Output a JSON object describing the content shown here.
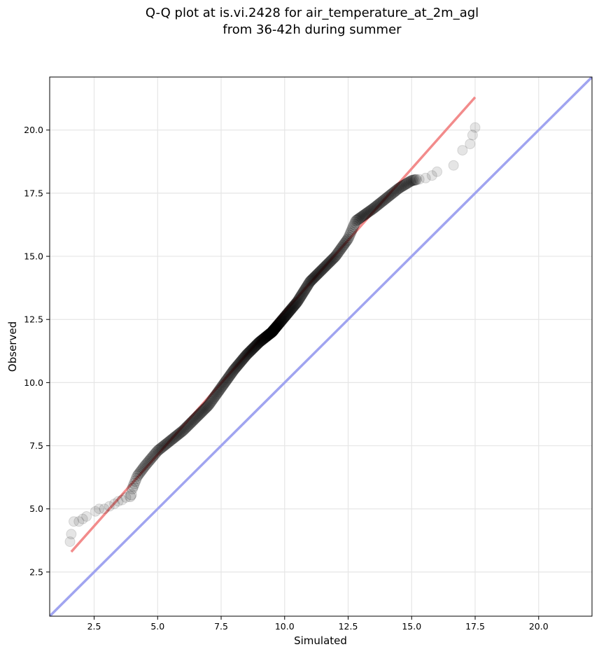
{
  "chart_data": {
    "type": "scatter",
    "title_line1": "Q-Q plot at is.vi.2428 for air_temperature_at_2m_agl",
    "title_line2": "from 36-42h during summer",
    "xlabel": "Simulated",
    "ylabel": "Observed",
    "xlim": [
      0.75,
      22.1
    ],
    "ylim": [
      0.75,
      22.1
    ],
    "x_ticks": [
      2.5,
      5.0,
      7.5,
      10.0,
      12.5,
      15.0,
      17.5,
      20.0
    ],
    "x_tick_labels": [
      "2.5",
      "5.0",
      "7.5",
      "10.0",
      "12.5",
      "15.0",
      "17.5",
      "20.0"
    ],
    "y_ticks": [
      2.5,
      5.0,
      7.5,
      10.0,
      12.5,
      15.0,
      17.5,
      20.0
    ],
    "y_tick_labels": [
      "2.5",
      "5.0",
      "7.5",
      "10.0",
      "12.5",
      "15.0",
      "17.5",
      "20.0"
    ],
    "grid": true,
    "colors": {
      "points": "#000000",
      "fit_line": "#f28b8b",
      "identity_line": "#a0a4f0",
      "grid": "#e6e6e6"
    },
    "fit_line": {
      "x": [
        1.6,
        17.5
      ],
      "y": [
        3.3,
        21.3
      ]
    },
    "identity_line": {
      "x": [
        0.75,
        22.1
      ],
      "y": [
        0.75,
        22.1
      ]
    },
    "qq_anchors": [
      [
        1.55,
        3.7
      ],
      [
        1.6,
        4.0
      ],
      [
        1.7,
        4.5
      ],
      [
        2.0,
        4.6
      ],
      [
        2.6,
        5.0
      ],
      [
        3.2,
        5.2
      ],
      [
        3.6,
        5.4
      ],
      [
        3.95,
        5.5
      ],
      [
        4.0,
        5.8
      ],
      [
        4.2,
        6.3
      ],
      [
        4.5,
        6.7
      ],
      [
        5.0,
        7.3
      ],
      [
        6.0,
        8.1
      ],
      [
        7.0,
        9.1
      ],
      [
        7.5,
        9.8
      ],
      [
        8.0,
        10.5
      ],
      [
        8.5,
        11.1
      ],
      [
        9.0,
        11.6
      ],
      [
        9.5,
        12.0
      ],
      [
        10.0,
        12.6
      ],
      [
        10.5,
        13.2
      ],
      [
        11.0,
        14.0
      ],
      [
        11.5,
        14.5
      ],
      [
        12.0,
        15.0
      ],
      [
        12.5,
        15.7
      ],
      [
        12.8,
        16.4
      ],
      [
        13.5,
        16.9
      ],
      [
        14.0,
        17.3
      ],
      [
        14.5,
        17.7
      ],
      [
        15.0,
        18.0
      ],
      [
        15.5,
        18.1
      ],
      [
        16.0,
        18.3
      ],
      [
        16.7,
        18.6
      ],
      [
        17.0,
        19.2
      ],
      [
        17.3,
        19.5
      ],
      [
        17.4,
        19.8
      ],
      [
        17.5,
        20.1
      ]
    ],
    "tail_points": [
      [
        1.55,
        3.7
      ],
      [
        1.6,
        4.0
      ],
      [
        1.7,
        4.5
      ],
      [
        1.9,
        4.5
      ],
      [
        2.05,
        4.6
      ],
      [
        2.2,
        4.7
      ],
      [
        2.55,
        4.9
      ],
      [
        2.7,
        5.0
      ],
      [
        2.9,
        5.0
      ],
      [
        3.1,
        5.1
      ],
      [
        3.3,
        5.2
      ],
      [
        3.45,
        5.3
      ],
      [
        3.6,
        5.35
      ],
      [
        3.75,
        5.45
      ],
      [
        15.3,
        18.05
      ],
      [
        15.55,
        18.1
      ],
      [
        15.8,
        18.2
      ],
      [
        16.0,
        18.35
      ],
      [
        16.65,
        18.6
      ],
      [
        17.0,
        19.2
      ],
      [
        17.3,
        19.45
      ],
      [
        17.4,
        19.8
      ],
      [
        17.5,
        20.1
      ]
    ],
    "n_points": 450
  }
}
